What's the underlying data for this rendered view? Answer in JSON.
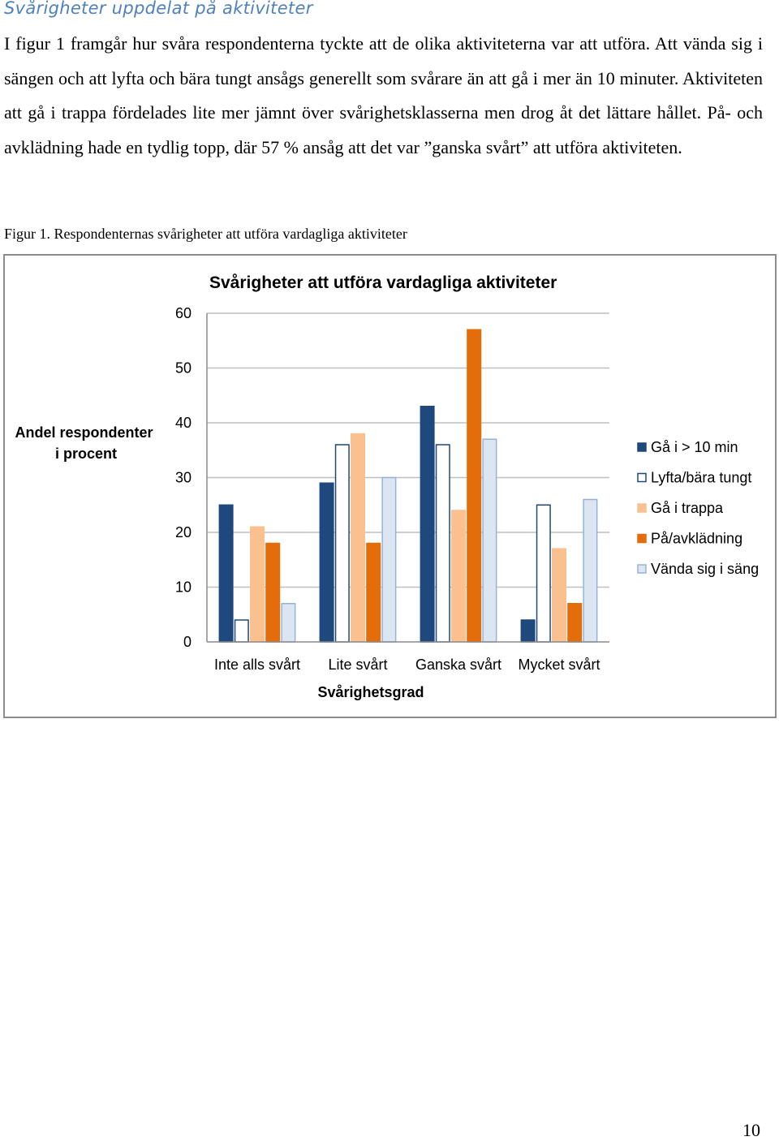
{
  "document": {
    "heading": "Svårigheter uppdelat på aktiviteter",
    "paragraph": "I figur 1 framgår hur svåra respondenterna tyckte att de olika aktiviteterna var att utföra. Att vända sig i sängen och att lyfta och bära tungt ansågs generellt som svårare än att gå i mer än 10 minuter. Aktiviteten att gå i trappa fördelades lite mer jämnt över svårighetsklasserna men drog åt det lättare hållet. På- och avklädning hade en tydlig topp, där 57 % ansåg att det var ”ganska svårt” att utföra aktiviteten.",
    "figure_caption": "Figur 1. Respondenternas svårigheter att utföra vardagliga aktiviteter",
    "page_number": "10"
  },
  "chart_data": {
    "type": "bar",
    "title": "Svårigheter att utföra vardagliga aktiviteter",
    "xlabel": "Svårighetsgrad",
    "ylabel": "Andel respondenter i procent",
    "ylabel_lines": [
      "Andel respondenter",
      "i procent"
    ],
    "ylim": [
      0,
      60
    ],
    "yticks": [
      0,
      10,
      20,
      30,
      40,
      50,
      60
    ],
    "grid": true,
    "legend_position": "right",
    "categories": [
      "Inte alls svårt",
      "Lite svårt",
      "Ganska svårt",
      "Mycket svårt"
    ],
    "series": [
      {
        "name": "Gå i > 10 min",
        "values": [
          25,
          29,
          43,
          4
        ],
        "fill": "#1f497d",
        "stroke": "#1f497d"
      },
      {
        "name": "Lyfta/bära tungt",
        "values": [
          4,
          36,
          36,
          25
        ],
        "fill": "#ffffff",
        "stroke": "#1f497d"
      },
      {
        "name": "Gå i trappa",
        "values": [
          21,
          38,
          24,
          17
        ],
        "fill": "#fac090",
        "stroke": "#fac090"
      },
      {
        "name": "På/avklädning",
        "values": [
          18,
          18,
          57,
          7
        ],
        "fill": "#e46c0a",
        "stroke": "#e46c0a"
      },
      {
        "name": "Vända sig i säng",
        "values": [
          7,
          30,
          37,
          26
        ],
        "fill": "#dce6f2",
        "stroke": "#95b3d7"
      }
    ]
  }
}
